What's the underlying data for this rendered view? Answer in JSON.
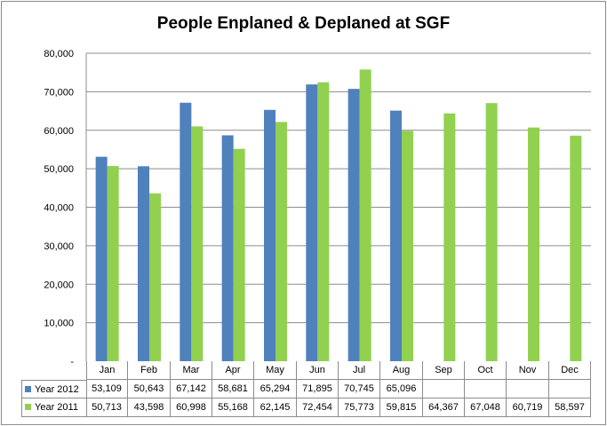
{
  "chart_data": {
    "type": "bar",
    "title": "People Enplaned & Deplaned at SGF",
    "categories": [
      "Jan",
      "Feb",
      "Mar",
      "Apr",
      "May",
      "Jun",
      "Jul",
      "Aug",
      "Sep",
      "Oct",
      "Nov",
      "Dec"
    ],
    "ylim": [
      0,
      80000
    ],
    "yticks": [
      "-",
      "10,000",
      "20,000",
      "30,000",
      "40,000",
      "50,000",
      "60,000",
      "70,000",
      "80,000"
    ],
    "grid": true,
    "legend": "data-table",
    "series": [
      {
        "name": "Year 2012",
        "color": "#4f81bd",
        "values": [
          53109,
          50643,
          67142,
          58681,
          65294,
          71895,
          70745,
          65096,
          null,
          null,
          null,
          null
        ],
        "labels": [
          "53,109",
          "50,643",
          "67,142",
          "58,681",
          "65,294",
          "71,895",
          "70,745",
          "65,096",
          "",
          "",
          "",
          ""
        ]
      },
      {
        "name": "Year 2011",
        "color": "#92d050",
        "values": [
          50713,
          43598,
          60998,
          55168,
          62145,
          72454,
          75773,
          59815,
          64367,
          67048,
          60719,
          58597
        ],
        "labels": [
          "50,713",
          "43,598",
          "60,998",
          "55,168",
          "62,145",
          "72,454",
          "75,773",
          "59,815",
          "64,367",
          "67,048",
          "60,719",
          "58,597"
        ]
      }
    ]
  }
}
